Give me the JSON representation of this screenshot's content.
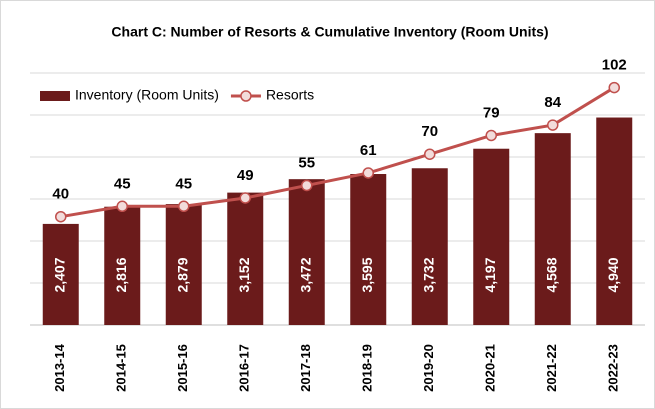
{
  "chart_data": {
    "type": "bar_line",
    "title": "Chart C: Number of Resorts & Cumulative Inventory (Room Units)",
    "categories": [
      "2013-14",
      "2014-15",
      "2015-16",
      "2016-17",
      "2017-18",
      "2018-19",
      "2019-20",
      "2020-21",
      "2021-22",
      "2022-23"
    ],
    "series": [
      {
        "name": "Inventory (Room Units)",
        "type": "bar",
        "color": "#6b1b1b",
        "values": [
          2407,
          2816,
          2879,
          3152,
          3472,
          3595,
          3732,
          4197,
          4568,
          4940
        ],
        "value_labels": [
          "2,407",
          "2,816",
          "2,879",
          "3,152",
          "3,472",
          "3,595",
          "3,732",
          "4,197",
          "4,568",
          "4,940"
        ]
      },
      {
        "name": "Resorts",
        "type": "line",
        "axis": "y2",
        "color": "#c0504d",
        "marker_fill": "#f2dcdb",
        "values": [
          40,
          45,
          45,
          49,
          55,
          61,
          70,
          79,
          84,
          102
        ]
      }
    ],
    "ylim": [
      0,
      6000
    ],
    "yticks": [
      0,
      1000,
      2000,
      3000,
      4000,
      5000,
      6000
    ],
    "y2lim": [
      -12,
      109
    ],
    "grid": true,
    "legend": "top-left"
  }
}
